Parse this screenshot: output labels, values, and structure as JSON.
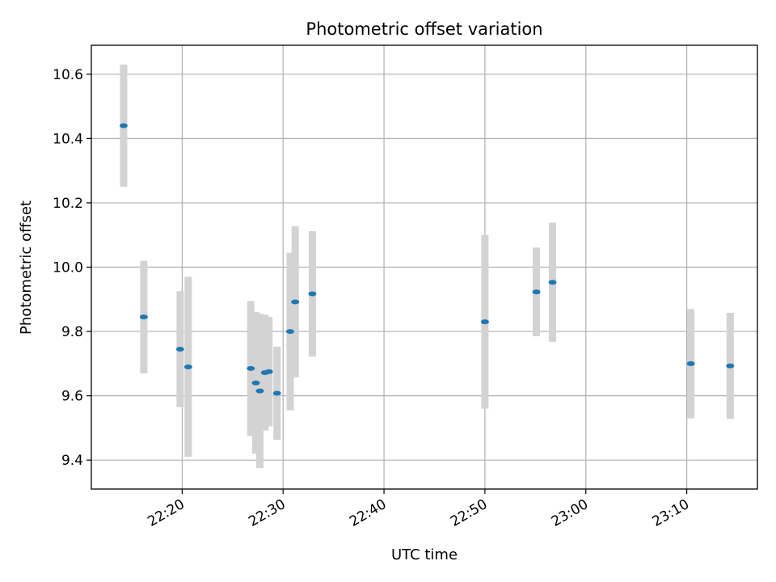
{
  "chart_data": {
    "type": "scatter",
    "title": "Photometric offset variation",
    "xlabel": "UTC time",
    "ylabel": "Photometric offset",
    "x_ticks": [
      "22:20",
      "22:30",
      "22:40",
      "22:50",
      "23:00",
      "23:10"
    ],
    "y_ticks": [
      "9.4",
      "9.6",
      "9.8",
      "10.0",
      "10.2",
      "10.4",
      "10.6"
    ],
    "xlim": [
      "22:11:00",
      "23:17:00"
    ],
    "ylim": [
      9.31,
      10.69
    ],
    "grid": true,
    "points": [
      {
        "x": "22:14:12",
        "y": 10.44,
        "err": 0.19
      },
      {
        "x": "22:16:12",
        "y": 9.845,
        "err": 0.175
      },
      {
        "x": "22:19:48",
        "y": 9.745,
        "err": 0.18
      },
      {
        "x": "22:20:36",
        "y": 9.69,
        "err": 0.28
      },
      {
        "x": "22:26:48",
        "y": 9.685,
        "err": 0.21
      },
      {
        "x": "22:27:18",
        "y": 9.64,
        "err": 0.22
      },
      {
        "x": "22:27:42",
        "y": 9.615,
        "err": 0.24
      },
      {
        "x": "22:28:12",
        "y": 9.672,
        "err": 0.18
      },
      {
        "x": "22:28:36",
        "y": 9.675,
        "err": 0.17
      },
      {
        "x": "22:29:24",
        "y": 9.608,
        "err": 0.145
      },
      {
        "x": "22:30:42",
        "y": 9.8,
        "err": 0.245
      },
      {
        "x": "22:31:12",
        "y": 9.892,
        "err": 0.235
      },
      {
        "x": "22:32:54",
        "y": 9.917,
        "err": 0.195
      },
      {
        "x": "22:50:00",
        "y": 9.83,
        "err": 0.27
      },
      {
        "x": "22:55:06",
        "y": 9.923,
        "err": 0.138
      },
      {
        "x": "22:56:42",
        "y": 9.953,
        "err": 0.185
      },
      {
        "x": "23:10:24",
        "y": 9.7,
        "err": 0.17
      },
      {
        "x": "23:14:18",
        "y": 9.693,
        "err": 0.165
      }
    ],
    "colors": {
      "point": "#1f77b4",
      "errorbar": "#d3d3d3",
      "grid": "#b0b0b0",
      "axes": "#000000"
    }
  }
}
